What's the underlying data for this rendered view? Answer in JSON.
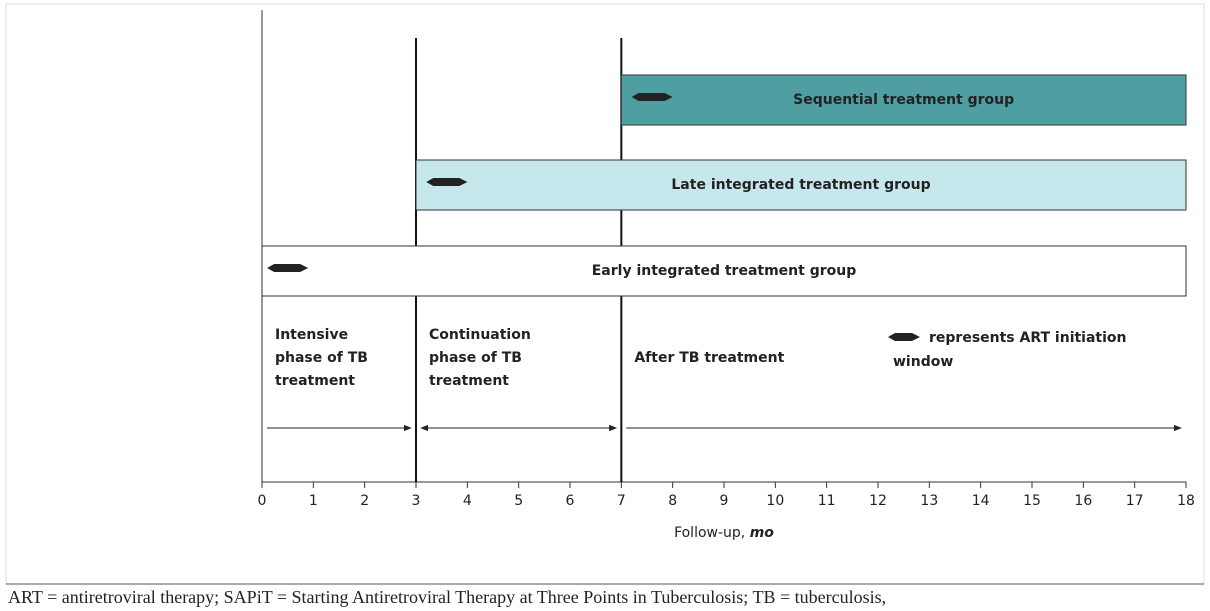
{
  "chart_data": {
    "type": "timeline",
    "xlabel": "Follow-up,",
    "xlabel_unit": "mo",
    "xlim": [
      0,
      18
    ],
    "xticks": [
      0,
      1,
      2,
      3,
      4,
      5,
      6,
      7,
      8,
      9,
      10,
      11,
      12,
      13,
      14,
      15,
      16,
      17,
      18
    ],
    "dividers": [
      3,
      7
    ],
    "groups": [
      {
        "name": "Sequential treatment group",
        "start": 7,
        "end": 18,
        "window": [
          7.2,
          8.0
        ],
        "color": "#4f9ea2"
      },
      {
        "name": "Late integrated treatment group",
        "start": 3,
        "end": 18,
        "window": [
          3.2,
          4.0
        ],
        "color": "#c6e7eb"
      },
      {
        "name": "Early integrated treatment group",
        "start": 0,
        "end": 18,
        "window": [
          0.1,
          0.9
        ],
        "color": "#ffffff"
      }
    ],
    "phases": [
      {
        "lines": [
          "Intensive",
          "phase of TB",
          "treatment"
        ],
        "start": 0,
        "end": 3,
        "arrows": "end"
      },
      {
        "lines": [
          "Continuation",
          "phase of TB",
          "treatment"
        ],
        "start": 3,
        "end": 7,
        "arrows": "both"
      },
      {
        "lines": [
          "After TB treatment"
        ],
        "start": 7,
        "end": 18,
        "arrows": "end"
      }
    ],
    "legend": [
      "represents ART initiation",
      "window"
    ],
    "footnote": "ART = antiretroviral therapy; SAPiT = Starting Antiretroviral Therapy at Three Points in Tuberculosis; TB = tuberculosis,"
  }
}
